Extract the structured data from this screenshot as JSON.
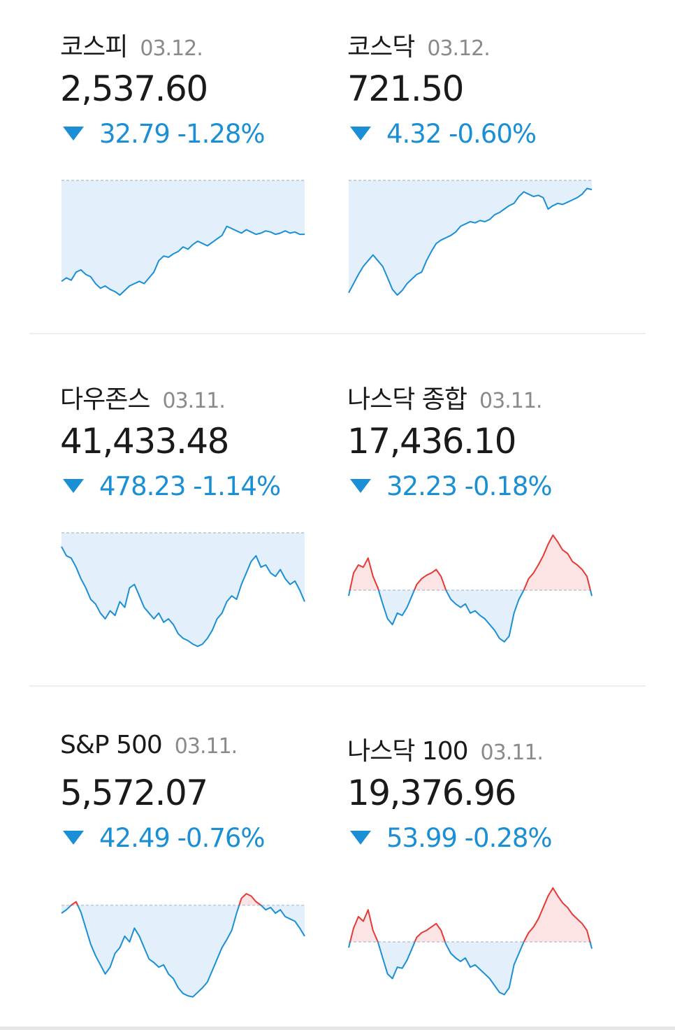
{
  "colors": {
    "down": "#1a8fd6",
    "up": "#e53935",
    "down_fill": "#e3f0fb",
    "up_fill": "#fde4e4"
  },
  "cards": [
    {
      "name": "코스피",
      "date": "03.12.",
      "price": "2,537.60",
      "change": "32.79 -1.28%",
      "direction": "down",
      "chart_data": {
        "type": "area",
        "ref": 1.0,
        "ylim": [
          0,
          1
        ],
        "series": [
          0.12,
          0.15,
          0.13,
          0.2,
          0.22,
          0.18,
          0.16,
          0.1,
          0.06,
          0.08,
          0.05,
          0.03,
          0.0,
          0.04,
          0.08,
          0.1,
          0.12,
          0.1,
          0.15,
          0.2,
          0.3,
          0.34,
          0.33,
          0.36,
          0.38,
          0.42,
          0.4,
          0.44,
          0.47,
          0.45,
          0.43,
          0.46,
          0.49,
          0.52,
          0.6,
          0.58,
          0.56,
          0.54,
          0.57,
          0.55,
          0.53,
          0.54,
          0.56,
          0.55,
          0.53,
          0.54,
          0.56,
          0.54,
          0.55,
          0.53,
          0.53
        ]
      }
    },
    {
      "name": "코스닥",
      "date": "03.12.",
      "price": "721.50",
      "change": "4.32 -0.60%",
      "direction": "down",
      "chart_data": {
        "type": "area",
        "ref": 1.0,
        "ylim": [
          0,
          1
        ],
        "series": [
          0.02,
          0.1,
          0.18,
          0.25,
          0.3,
          0.35,
          0.3,
          0.25,
          0.15,
          0.05,
          0.0,
          0.04,
          0.1,
          0.14,
          0.18,
          0.2,
          0.3,
          0.38,
          0.45,
          0.48,
          0.5,
          0.52,
          0.55,
          0.6,
          0.62,
          0.64,
          0.63,
          0.65,
          0.64,
          0.66,
          0.7,
          0.72,
          0.75,
          0.78,
          0.8,
          0.86,
          0.9,
          0.88,
          0.86,
          0.87,
          0.85,
          0.75,
          0.78,
          0.8,
          0.79,
          0.81,
          0.83,
          0.85,
          0.88,
          0.93,
          0.92
        ]
      }
    },
    {
      "name": "다우존스",
      "date": "03.11.",
      "price": "41,433.48",
      "change": "478.23 -1.14%",
      "direction": "down",
      "chart_data": {
        "type": "area",
        "ref": 1.0,
        "ylim": [
          0,
          1
        ],
        "series": [
          0.88,
          0.8,
          0.78,
          0.7,
          0.6,
          0.52,
          0.42,
          0.38,
          0.3,
          0.25,
          0.32,
          0.28,
          0.4,
          0.35,
          0.52,
          0.55,
          0.45,
          0.35,
          0.3,
          0.25,
          0.3,
          0.22,
          0.25,
          0.2,
          0.12,
          0.08,
          0.06,
          0.03,
          0.01,
          0.03,
          0.08,
          0.15,
          0.25,
          0.3,
          0.4,
          0.45,
          0.42,
          0.55,
          0.65,
          0.75,
          0.8,
          0.7,
          0.72,
          0.65,
          0.62,
          0.68,
          0.6,
          0.55,
          0.58,
          0.5,
          0.4
        ]
      }
    },
    {
      "name": "나스닥 종합",
      "date": "03.11.",
      "price": "17,436.10",
      "change": "32.23 -0.18%",
      "direction": "down",
      "chart_data": {
        "type": "area",
        "ref": 0.5,
        "ylim": [
          0,
          1
        ],
        "series": [
          0.45,
          0.65,
          0.72,
          0.7,
          0.78,
          0.62,
          0.52,
          0.38,
          0.25,
          0.2,
          0.3,
          0.28,
          0.35,
          0.45,
          0.55,
          0.6,
          0.63,
          0.65,
          0.68,
          0.62,
          0.5,
          0.42,
          0.38,
          0.35,
          0.38,
          0.3,
          0.32,
          0.28,
          0.25,
          0.2,
          0.15,
          0.08,
          0.05,
          0.1,
          0.3,
          0.42,
          0.5,
          0.6,
          0.65,
          0.72,
          0.8,
          0.9,
          0.98,
          0.92,
          0.85,
          0.82,
          0.75,
          0.72,
          0.68,
          0.62,
          0.45
        ]
      }
    },
    {
      "name": "S&P 500",
      "date": "03.11.",
      "price": "5,572.07",
      "change": "42.49 -0.76%",
      "direction": "down",
      "chart_data": {
        "type": "area",
        "ref": 0.82,
        "ylim": [
          0,
          1
        ],
        "series": [
          0.75,
          0.78,
          0.82,
          0.85,
          0.76,
          0.62,
          0.48,
          0.38,
          0.3,
          0.22,
          0.28,
          0.4,
          0.45,
          0.55,
          0.5,
          0.62,
          0.55,
          0.45,
          0.35,
          0.32,
          0.28,
          0.3,
          0.22,
          0.18,
          0.1,
          0.05,
          0.03,
          0.02,
          0.06,
          0.1,
          0.15,
          0.25,
          0.35,
          0.45,
          0.52,
          0.6,
          0.75,
          0.88,
          0.92,
          0.9,
          0.85,
          0.82,
          0.78,
          0.8,
          0.75,
          0.78,
          0.72,
          0.7,
          0.68,
          0.62,
          0.55
        ]
      }
    },
    {
      "name": "나스닥 100",
      "date": "03.11.",
      "price": "19,376.96",
      "change": "53.99 -0.28%",
      "direction": "down",
      "chart_data": {
        "type": "area",
        "ref": 0.5,
        "ylim": [
          0,
          1
        ],
        "series": [
          0.45,
          0.62,
          0.72,
          0.68,
          0.78,
          0.6,
          0.5,
          0.36,
          0.22,
          0.18,
          0.28,
          0.27,
          0.34,
          0.44,
          0.54,
          0.58,
          0.6,
          0.63,
          0.66,
          0.6,
          0.48,
          0.4,
          0.36,
          0.33,
          0.36,
          0.28,
          0.3,
          0.26,
          0.22,
          0.18,
          0.12,
          0.06,
          0.04,
          0.1,
          0.3,
          0.4,
          0.5,
          0.58,
          0.63,
          0.7,
          0.8,
          0.9,
          0.97,
          0.9,
          0.84,
          0.8,
          0.74,
          0.7,
          0.66,
          0.6,
          0.44
        ]
      }
    }
  ]
}
